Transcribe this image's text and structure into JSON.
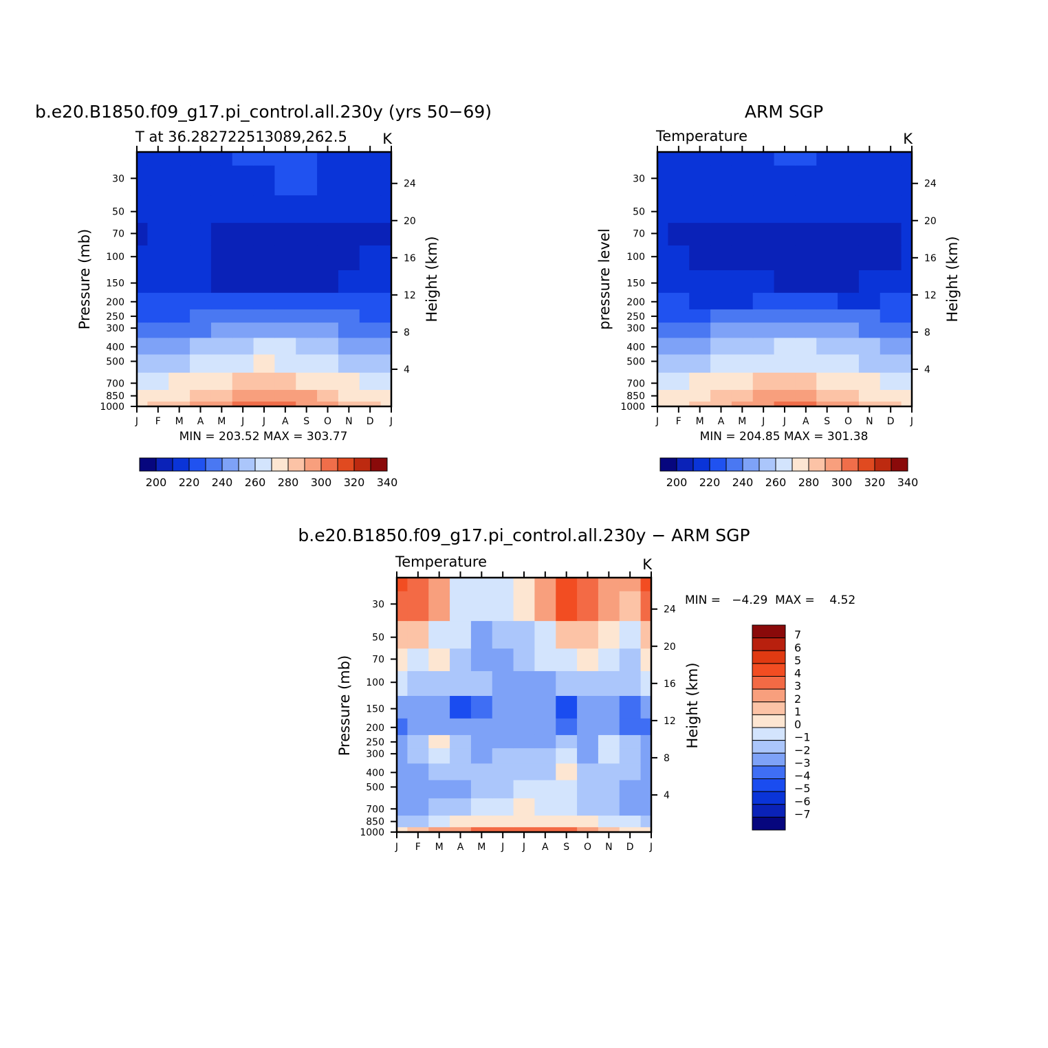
{
  "months": [
    "J",
    "F",
    "M",
    "A",
    "M",
    "J",
    "J",
    "A",
    "S",
    "O",
    "N",
    "D",
    "J"
  ],
  "pressure_ticks": [
    "30",
    "50",
    "70",
    "100",
    "150",
    "200",
    "250",
    "300",
    "400",
    "500",
    "700",
    "850",
    "1000"
  ],
  "height_ticks": [
    "24",
    "20",
    "16",
    "12",
    "8",
    "4"
  ],
  "palettes": {
    "absolute": [
      "#06067e",
      "#0a22b8",
      "#0a34d8",
      "#2052f0",
      "#4a78f2",
      "#7ea2f7",
      "#abc6fb",
      "#d3e4fd",
      "#fde6d2",
      "#fcc3a6",
      "#f89f7d",
      "#f06e4a",
      "#e04a20",
      "#bd2a10",
      "#8a0a0a"
    ],
    "difference": [
      "#06067e",
      "#0a22b8",
      "#0a34d8",
      "#1a4cf0",
      "#3f6ef4",
      "#7ea2f7",
      "#abc6fb",
      "#d3e4fd",
      "#fde6d2",
      "#fcc3a6",
      "#f89f7d",
      "#f36a45",
      "#f24d22",
      "#e03a12",
      "#b8200e",
      "#8a0a0a"
    ]
  },
  "panels": {
    "model": {
      "title": "b.e20.B1850.f09_g17.pi_control.all.230y (yrs 50−69)",
      "subtitle": "T at 36.282722513089,262.5",
      "units": "K",
      "ylabel": "Pressure (mb)",
      "ylabel2": "Height (km)",
      "minmax": "MIN = 203.52 MAX = 303.77",
      "colorbar_labels": [
        "200",
        "220",
        "240",
        "260",
        "280",
        "300",
        "320",
        "340"
      ]
    },
    "obs": {
      "title": "ARM SGP",
      "subtitle": "Temperature",
      "units": "K",
      "ylabel": "pressure level",
      "ylabel2": "Height (km)",
      "minmax": "MIN = 204.85 MAX = 301.38",
      "colorbar_labels": [
        "200",
        "220",
        "240",
        "260",
        "280",
        "300",
        "320",
        "340"
      ]
    },
    "diff": {
      "title": "b.e20.B1850.f09_g17.pi_control.all.230y − ARM SGP",
      "subtitle": "Temperature",
      "units": "K",
      "ylabel": "Pressure (mb)",
      "ylabel2": "Height (km)",
      "minmax": "MIN =   −4.29  MAX =    4.52",
      "colorbar_labels": [
        "7",
        "6",
        "5",
        "4",
        "3",
        "2",
        "1",
        "0",
        "−1",
        "−2",
        "−3",
        "−4",
        "−5",
        "−6",
        "−7"
      ]
    }
  },
  "chart_data": [
    {
      "type": "heatmap",
      "title": "b.e20.B1850.f09_g17.pi_control.all.230y (yrs 50−69)",
      "subtitle": "T at 36.282722513089,262.5",
      "units": "K",
      "xlabel": "",
      "ylabel": "Pressure (mb)",
      "ylabel2": "Height (km)",
      "x": [
        "J",
        "F",
        "M",
        "A",
        "M",
        "J",
        "J",
        "A",
        "S",
        "O",
        "N",
        "D",
        "J"
      ],
      "y_pressure": [
        1000,
        850,
        700,
        500,
        400,
        300,
        250,
        200,
        150,
        100,
        70,
        50,
        30,
        20
      ],
      "levels": [
        200,
        210,
        220,
        230,
        240,
        250,
        260,
        270,
        280,
        290,
        300,
        310,
        320,
        330,
        340
      ],
      "values": [
        [
          279.5,
          281.0,
          286.0,
          291.0,
          297.0,
          301.0,
          303.5,
          302.5,
          298.0,
          292.0,
          286.0,
          281.0,
          279.5
        ],
        [
          274.0,
          275.0,
          278.0,
          283.0,
          288.0,
          292.0,
          294.5,
          293.5,
          290.0,
          284.0,
          279.0,
          275.0,
          274.0
        ],
        [
          267.0,
          267.5,
          270.0,
          274.0,
          278.0,
          281.5,
          283.0,
          282.5,
          279.5,
          275.0,
          271.0,
          268.0,
          267.0
        ],
        [
          254.0,
          254.5,
          256.5,
          260.5,
          264.5,
          268.0,
          270.0,
          269.5,
          266.5,
          262.0,
          258.0,
          255.0,
          254.0
        ],
        [
          245.0,
          245.5,
          247.5,
          251.5,
          255.0,
          258.5,
          260.5,
          260.0,
          257.0,
          253.0,
          249.0,
          246.0,
          245.0
        ],
        [
          234.0,
          234.5,
          236.0,
          239.5,
          243.0,
          246.0,
          248.0,
          247.5,
          245.0,
          241.5,
          237.5,
          235.0,
          234.0
        ],
        [
          226.5,
          227.0,
          228.5,
          231.5,
          234.5,
          237.5,
          239.0,
          238.5,
          236.5,
          233.5,
          230.0,
          227.5,
          226.5
        ],
        [
          221.0,
          221.0,
          221.5,
          221.5,
          222.0,
          225.0,
          227.5,
          227.0,
          225.0,
          222.5,
          221.0,
          221.0,
          221.0
        ],
        [
          218.5,
          217.5,
          217.0,
          215.5,
          208.5,
          208.0,
          207.5,
          207.0,
          207.5,
          208.5,
          214.0,
          217.5,
          218.5
        ],
        [
          212.5,
          215.0,
          214.0,
          212.5,
          209.0,
          208.0,
          207.0,
          206.0,
          206.5,
          207.5,
          208.5,
          210.5,
          212.5
        ],
        [
          208.5,
          210.5,
          210.5,
          210.0,
          209.0,
          208.5,
          207.5,
          207.0,
          207.0,
          207.5,
          208.0,
          208.5,
          208.5
        ],
        [
          211.0,
          211.0,
          211.0,
          211.5,
          211.0,
          211.0,
          210.5,
          210.0,
          210.0,
          210.0,
          210.5,
          211.0,
          211.0
        ],
        [
          214.0,
          214.0,
          214.5,
          215.5,
          217.0,
          218.5,
          219.5,
          220.5,
          220.0,
          217.0,
          215.0,
          214.0,
          214.0
        ],
        [
          216.0,
          216.0,
          216.5,
          217.5,
          219.5,
          221.0,
          222.0,
          222.5,
          222.0,
          219.0,
          216.5,
          216.0,
          216.0
        ]
      ]
    },
    {
      "type": "heatmap",
      "title": "ARM SGP",
      "subtitle": "Temperature",
      "units": "K",
      "xlabel": "",
      "ylabel": "pressure level",
      "ylabel2": "Height (km)",
      "x": [
        "J",
        "F",
        "M",
        "A",
        "M",
        "J",
        "J",
        "A",
        "S",
        "O",
        "N",
        "D",
        "J"
      ],
      "y_pressure": [
        1000,
        850,
        700,
        500,
        400,
        300,
        250,
        200,
        150,
        100,
        70,
        50,
        30,
        20
      ],
      "levels": [
        200,
        210,
        220,
        230,
        240,
        250,
        260,
        270,
        280,
        290,
        300,
        310,
        320,
        330,
        340
      ],
      "values": [
        [
          279.0,
          279.5,
          283.0,
          288.0,
          293.5,
          297.5,
          301.0,
          300.0,
          296.0,
          290.0,
          284.0,
          280.0,
          279.0
        ],
        [
          274.0,
          274.5,
          277.0,
          281.5,
          286.5,
          290.0,
          292.5,
          291.5,
          288.0,
          282.5,
          278.0,
          275.0,
          274.0
        ],
        [
          267.5,
          268.0,
          270.5,
          274.0,
          278.0,
          281.0,
          282.5,
          282.0,
          279.5,
          275.5,
          271.5,
          268.5,
          267.5
        ],
        [
          255.0,
          255.5,
          257.5,
          261.0,
          264.5,
          267.5,
          269.5,
          269.0,
          266.5,
          262.5,
          258.5,
          256.0,
          255.0
        ],
        [
          246.0,
          246.5,
          248.5,
          252.0,
          255.5,
          258.5,
          260.5,
          260.0,
          257.5,
          254.0,
          250.0,
          247.0,
          246.0
        ],
        [
          235.0,
          235.5,
          237.0,
          240.0,
          243.5,
          246.5,
          248.5,
          248.0,
          245.5,
          242.5,
          238.5,
          236.0,
          235.0
        ],
        [
          227.5,
          228.0,
          229.5,
          232.0,
          235.0,
          237.5,
          239.0,
          238.5,
          236.5,
          234.0,
          230.5,
          228.5,
          227.5
        ],
        [
          220.5,
          220.0,
          219.5,
          219.0,
          219.0,
          220.5,
          221.5,
          221.0,
          220.0,
          219.0,
          219.0,
          220.0,
          220.5
        ],
        [
          215.5,
          215.0,
          214.5,
          213.0,
          211.5,
          210.0,
          209.0,
          208.5,
          208.5,
          209.5,
          211.0,
          214.0,
          215.5
        ],
        [
          211.0,
          211.5,
          209.0,
          208.0,
          207.0,
          206.5,
          206.0,
          205.5,
          206.0,
          206.5,
          207.5,
          208.5,
          211.0
        ],
        [
          210.5,
          208.0,
          209.5,
          209.5,
          209.0,
          208.5,
          208.0,
          207.5,
          207.5,
          208.0,
          209.0,
          207.5,
          210.5
        ],
        [
          211.5,
          211.0,
          211.5,
          211.5,
          211.0,
          211.0,
          210.5,
          210.5,
          210.5,
          210.5,
          211.0,
          211.5,
          211.5
        ],
        [
          212.5,
          212.5,
          213.5,
          214.5,
          216.0,
          217.5,
          218.5,
          218.5,
          217.0,
          215.0,
          213.5,
          212.5,
          212.5
        ],
        [
          214.0,
          214.0,
          215.0,
          216.0,
          217.5,
          219.0,
          220.5,
          220.5,
          219.0,
          216.5,
          215.0,
          214.0,
          214.0
        ]
      ]
    },
    {
      "type": "heatmap",
      "title": "b.e20.B1850.f09_g17.pi_control.all.230y − ARM SGP",
      "subtitle": "Temperature",
      "units": "K",
      "xlabel": "",
      "ylabel": "Pressure (mb)",
      "ylabel2": "Height (km)",
      "x": [
        "J",
        "F",
        "M",
        "A",
        "M",
        "J",
        "J",
        "A",
        "S",
        "O",
        "N",
        "D",
        "J"
      ],
      "y_pressure": [
        1000,
        850,
        700,
        500,
        400,
        300,
        250,
        200,
        150,
        100,
        70,
        50,
        30,
        20
      ],
      "levels": [
        -7,
        -6,
        -5,
        -4,
        -3,
        -2,
        -1,
        0,
        1,
        2,
        3,
        4,
        5,
        6,
        7
      ],
      "values": [
        [
          0.5,
          1.2,
          2.0,
          2.8,
          3.2,
          3.3,
          3.4,
          3.0,
          3.5,
          2.0,
          1.2,
          0.8,
          0.5
        ],
        [
          -1.5,
          -1.2,
          -0.5,
          0.2,
          0.5,
          0.8,
          0.8,
          0.9,
          0.6,
          0.1,
          -0.5,
          -1.0,
          -1.5
        ],
        [
          -2.4,
          -2.2,
          -1.8,
          -1.2,
          -0.8,
          -0.3,
          0.2,
          -0.2,
          -0.5,
          -1.3,
          -1.8,
          -2.5,
          -2.4
        ],
        [
          -2.5,
          -2.3,
          -2.4,
          -2.2,
          -1.8,
          -1.6,
          -0.5,
          -0.8,
          -0.4,
          -1.5,
          -1.8,
          -2.1,
          -2.5
        ],
        [
          -2.6,
          -2.2,
          -1.1,
          -1.8,
          -1.6,
          -1.5,
          -1.2,
          -1.4,
          0.3,
          -1.2,
          -1.6,
          -1.9,
          -2.6
        ],
        [
          -2.4,
          -1.5,
          -0.6,
          -1.6,
          -2.3,
          -1.7,
          -1.7,
          -1.4,
          -0.8,
          -2.2,
          -0.5,
          -1.5,
          -2.4
        ],
        [
          -2.8,
          -1.2,
          0.3,
          -1.5,
          -2.2,
          -2.4,
          -2.6,
          -2.3,
          -2.0,
          -2.6,
          -1.0,
          -2.0,
          -2.8
        ],
        [
          -3.6,
          -2.8,
          -2.4,
          -2.6,
          -2.5,
          -2.7,
          -2.6,
          -2.5,
          -3.4,
          -2.5,
          -2.6,
          -3.2,
          -3.6
        ],
        [
          -2.9,
          -2.8,
          -2.6,
          -4.2,
          -3.8,
          -2.8,
          -2.5,
          -2.6,
          -4.3,
          -2.6,
          -2.5,
          -3.9,
          -2.9
        ],
        [
          -1.0,
          -1.3,
          -1.4,
          -1.6,
          -2.0,
          -2.3,
          -2.4,
          -2.2,
          -2.0,
          -1.2,
          -1.5,
          -1.8,
          -1.0
        ],
        [
          0.6,
          -0.4,
          0.4,
          -1.3,
          -2.7,
          -2.3,
          -1.2,
          -0.8,
          -0.1,
          0.8,
          -0.6,
          -1.4,
          0.6
        ],
        [
          1.8,
          1.0,
          -0.5,
          -0.6,
          -2.3,
          -2.0,
          -1.5,
          -0.4,
          1.6,
          1.8,
          0.8,
          -0.8,
          1.8
        ],
        [
          3.9,
          3.5,
          2.0,
          -0.8,
          -0.8,
          -0.9,
          0.2,
          2.5,
          4.5,
          3.0,
          2.5,
          1.8,
          3.9
        ],
        [
          4.0,
          3.6,
          2.5,
          -0.4,
          -0.6,
          -0.8,
          0.6,
          2.8,
          4.5,
          3.2,
          2.6,
          2.0,
          4.0
        ]
      ]
    }
  ]
}
